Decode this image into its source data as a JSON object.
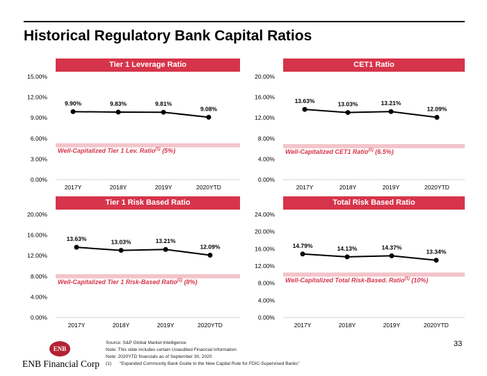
{
  "page": {
    "title": "Historical Regulatory Bank Capital Ratios",
    "page_number": "33",
    "company": "ENB Financial Corp",
    "logo_text": "ENB",
    "footnotes": [
      {
        "mark": "",
        "text": "Source: S&P Global Market Intelligence"
      },
      {
        "mark": "",
        "text": "Note:  This slide includes certain Unaudited Financial Information"
      },
      {
        "mark": "",
        "text": "Note:   2020YTD financials as of September 30, 2020"
      },
      {
        "mark": "(1)",
        "text": "“Expanded Community Bank Guide to the New Capital Rule for FDIC-Supervised Banks”"
      }
    ],
    "colors": {
      "header": "#d6344a",
      "threshold": "#f3c4cb",
      "threshold_text": "#d6344a",
      "line": "#000000"
    }
  },
  "chart_data": [
    {
      "type": "line",
      "title": "Tier 1 Leverage Ratio",
      "categories": [
        "2017Y",
        "2018Y",
        "2019Y",
        "2020YTD"
      ],
      "values": [
        9.9,
        9.83,
        9.81,
        9.08
      ],
      "data_labels": [
        "9.90%",
        "9.83%",
        "9.81%",
        "9.08%"
      ],
      "ylim": [
        0,
        15
      ],
      "yticks": [
        0,
        3,
        6,
        9,
        12,
        15
      ],
      "ytick_labels": [
        "0.00%",
        "3.00%",
        "6.00%",
        "9.00%",
        "12.00%",
        "15.00%"
      ],
      "threshold": {
        "value": 5,
        "label": "Well-Capitalized Tier 1 Lev. Ratio",
        "sup": "(1)",
        "suffix": " (5%)"
      }
    },
    {
      "type": "line",
      "title": "CET1 Ratio",
      "categories": [
        "2017Y",
        "2018Y",
        "2019Y",
        "2020YTD"
      ],
      "values": [
        13.63,
        13.03,
        13.21,
        12.09
      ],
      "data_labels": [
        "13.63%",
        "13.03%",
        "13.21%",
        "12.09%"
      ],
      "ylim": [
        0,
        20
      ],
      "yticks": [
        0,
        4,
        8,
        12,
        16,
        20
      ],
      "ytick_labels": [
        "0.00%",
        "4.00%",
        "8.00%",
        "12.00%",
        "16.00%",
        "20.00%"
      ],
      "threshold": {
        "value": 6.5,
        "label": "Well-Capitalized CET1 Ratio",
        "sup": "(1)",
        "suffix": " (6.5%)"
      }
    },
    {
      "type": "line",
      "title": "Tier 1 Risk Based Ratio",
      "categories": [
        "2017Y",
        "2018Y",
        "2019Y",
        "2020YTD"
      ],
      "values": [
        13.63,
        13.03,
        13.21,
        12.09
      ],
      "data_labels": [
        "13.63%",
        "13.03%",
        "13.21%",
        "12.09%"
      ],
      "ylim": [
        0,
        20
      ],
      "yticks": [
        0,
        4,
        8,
        12,
        16,
        20
      ],
      "ytick_labels": [
        "0.00%",
        "4.00%",
        "8.00%",
        "12.00%",
        "16.00%",
        "20.00%"
      ],
      "threshold": {
        "value": 8,
        "label": "Well-Capitalized Tier 1 Risk-Based Ratio",
        "sup": "(1)",
        "suffix": " (8%)"
      }
    },
    {
      "type": "line",
      "title": "Total Risk Based Ratio",
      "categories": [
        "2017Y",
        "2018Y",
        "2019Y",
        "2020YTD"
      ],
      "values": [
        14.79,
        14.13,
        14.37,
        13.34
      ],
      "data_labels": [
        "14.79%",
        "14.13%",
        "14.37%",
        "13.34%"
      ],
      "ylim": [
        0,
        24
      ],
      "yticks": [
        0,
        4,
        8,
        12,
        16,
        20,
        24
      ],
      "ytick_labels": [
        "0.00%",
        "4.00%",
        "8.00%",
        "12.00%",
        "16.00%",
        "20.00%",
        "24.00%"
      ],
      "threshold": {
        "value": 10,
        "label": "Well-Capitalized Total Risk-Based. Ratio",
        "sup": "(1)",
        "suffix": " (10%)"
      }
    }
  ]
}
